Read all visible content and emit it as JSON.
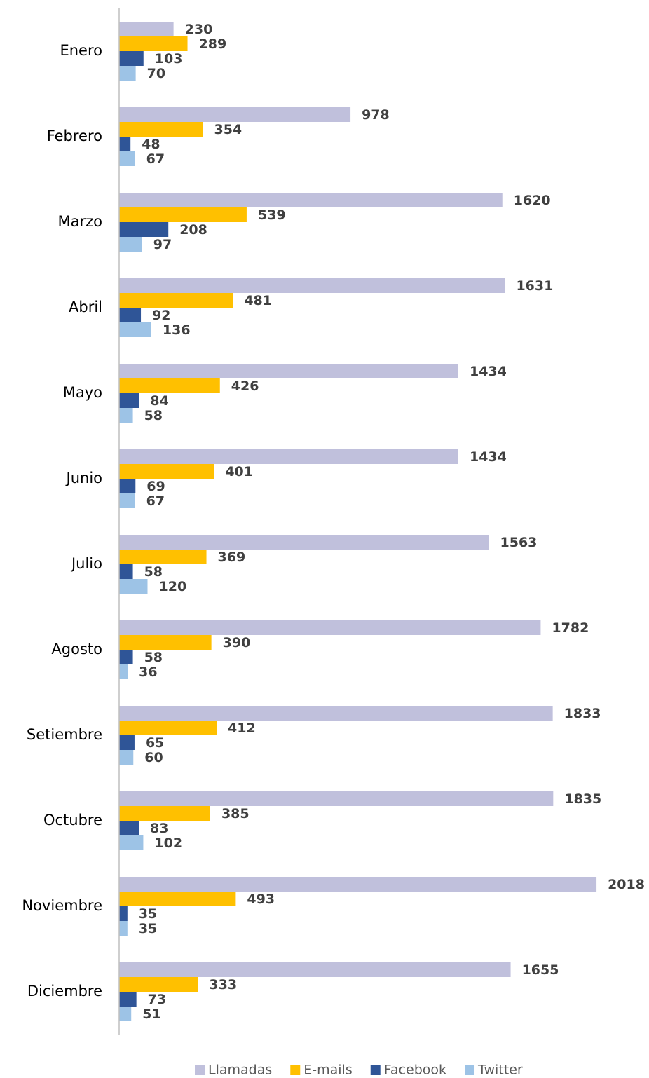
{
  "chart_data": {
    "type": "bar",
    "orientation": "horizontal",
    "categories": [
      "Enero",
      "Febrero",
      "Marzo",
      "Abril",
      "Mayo",
      "Junio",
      "Julio",
      "Agosto",
      "Setiembre",
      "Octubre",
      "Noviembre",
      "Diciembre"
    ],
    "series": [
      {
        "name": "Llamadas",
        "color": "#c0c0dc",
        "values": [
          230,
          978,
          1620,
          1631,
          1434,
          1434,
          1563,
          1782,
          1833,
          1835,
          2018,
          1655
        ]
      },
      {
        "name": "E-mails",
        "color": "#ffc000",
        "values": [
          289,
          354,
          539,
          481,
          426,
          401,
          369,
          390,
          412,
          385,
          493,
          333
        ]
      },
      {
        "name": "Facebook",
        "color": "#2f5597",
        "values": [
          103,
          48,
          208,
          92,
          84,
          69,
          58,
          58,
          65,
          83,
          35,
          73
        ]
      },
      {
        "name": "Twitter",
        "color": "#9dc3e6",
        "values": [
          70,
          67,
          97,
          136,
          58,
          67,
          120,
          36,
          60,
          102,
          35,
          51
        ]
      }
    ],
    "xlim": [
      0,
      2200
    ],
    "legend": "bottom"
  }
}
